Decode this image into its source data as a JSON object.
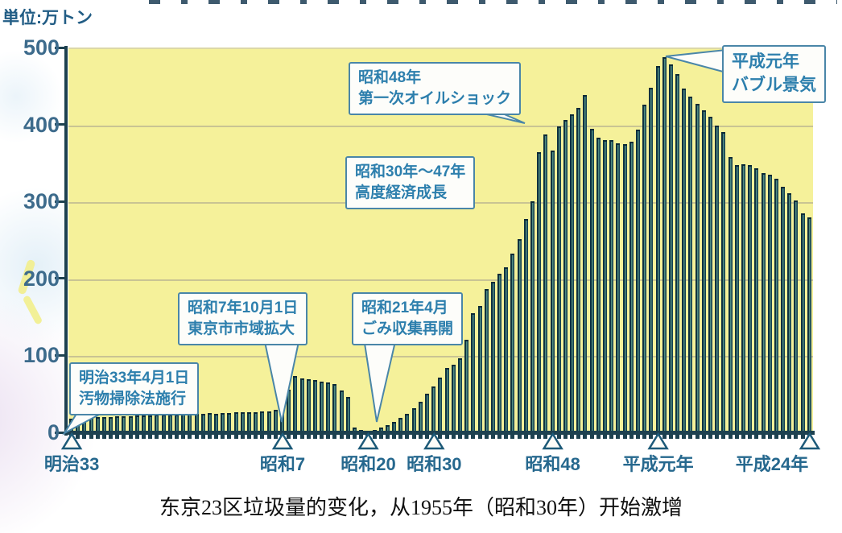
{
  "unit_label": "単位:万トン",
  "caption": "东京23区垃圾量的变化，从1955年（昭和30年）开始激增",
  "annotations": [
    {
      "line1": "明治33年4月1日",
      "line2": "汚物掃除法施行"
    },
    {
      "line1": "昭和7年10月1日",
      "line2": "東京市市域拡大"
    },
    {
      "line1": "昭和21年4月",
      "line2": "ごみ収集再開"
    },
    {
      "line1": "昭和30年～47年",
      "line2": "高度経済成長"
    },
    {
      "line1": "昭和48年",
      "line2": "第一次オイルショック"
    },
    {
      "line1": "平成元年",
      "line2": "バブル景気"
    }
  ],
  "colors": {
    "plot_bg": "#f5f19a",
    "bar_dark": "#0f3240",
    "bar_light": "#4f8a80",
    "axis": "#1d4150",
    "axis_label": "#3d6b8c",
    "x_label": "#26688e",
    "annotation_border": "#4a86a8",
    "annotation_text": "#2d7fad",
    "caption_color": "#111111"
  },
  "chart_data": {
    "type": "bar",
    "title": "",
    "xlabel": "",
    "ylabel": "単位:万トン",
    "ylim": [
      0,
      500
    ],
    "yticks": [
      0,
      100,
      200,
      300,
      400,
      500
    ],
    "grid": true,
    "legend": "none",
    "x_start_year": 1900,
    "x_end_year": 2012,
    "x_tick_labels": [
      {
        "label": "明治33",
        "year": 1900
      },
      {
        "label": "昭和7",
        "year": 1932
      },
      {
        "label": "昭和20",
        "year": 1945
      },
      {
        "label": "昭和30",
        "year": 1955
      },
      {
        "label": "昭和48",
        "year": 1973
      },
      {
        "label": "平成元年",
        "year": 1989
      },
      {
        "label": "平成24年",
        "year": 2012
      }
    ],
    "series": [
      {
        "name": "",
        "values": [
          20,
          20,
          21,
          21,
          22,
          22,
          22,
          23,
          23,
          23,
          24,
          24,
          24,
          25,
          25,
          25,
          25,
          26,
          26,
          26,
          26,
          27,
          26,
          27,
          27,
          28,
          28,
          28,
          28,
          29,
          29,
          31,
          37,
          58,
          75,
          72,
          71,
          70,
          68,
          67,
          65,
          56,
          48,
          8,
          5,
          4,
          5,
          8,
          12,
          16,
          21,
          26,
          33,
          42,
          52,
          62,
          73,
          86,
          90,
          98,
          122,
          157,
          166,
          188,
          198,
          208,
          217,
          234,
          253,
          279,
          302,
          366,
          389,
          368,
          400,
          408,
          415,
          424,
          440,
          396,
          385,
          382,
          382,
          378,
          377,
          380,
          395,
          428,
          450,
          478,
          490,
          480,
          468,
          449,
          438,
          429,
          420,
          412,
          401,
          392,
          360,
          349,
          350,
          349,
          345,
          339,
          337,
          332,
          321,
          313,
          303,
          287,
          281
        ]
      }
    ]
  }
}
